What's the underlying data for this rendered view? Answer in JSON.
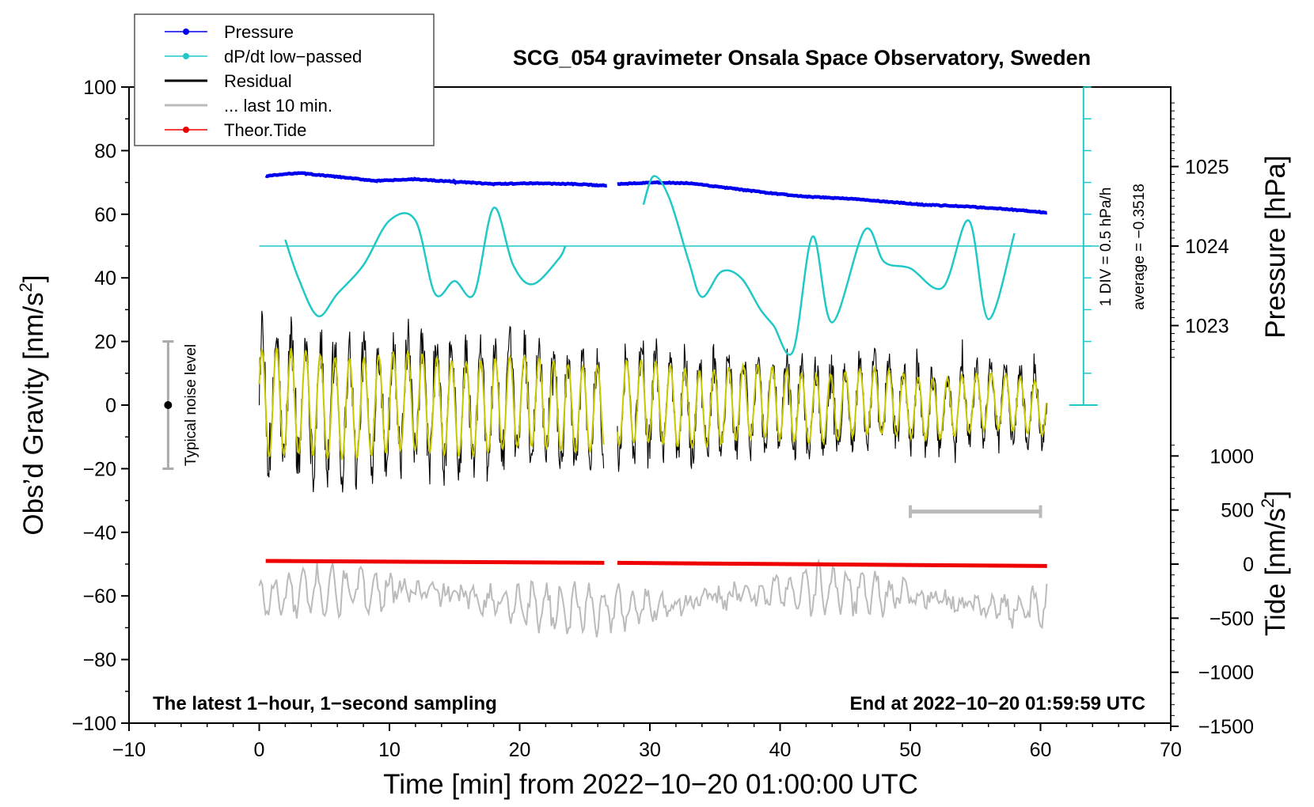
{
  "chart_data": {
    "type": "line",
    "title": "SCG_054 gravimeter Onsala Space Observatory, Sweden",
    "xlabel": "Time [min] from 2022−10−20 01:00:00 UTC",
    "ylabel_left": "Obs’d Gravity [nm/s",
    "ylabel_left_sup": "2",
    "ylabel_left_close": "]",
    "ylabel_right_pressure": "Pressure [hPa]",
    "ylabel_right_tide": "Tide [nm/s",
    "ylabel_right_tide_sup": "2",
    "ylabel_right_tide_close": "]",
    "xlim": [
      -10,
      70
    ],
    "ylim": [
      -100,
      100
    ],
    "x_ticks": [
      -10,
      0,
      10,
      20,
      30,
      40,
      50,
      60,
      70
    ],
    "x_tick_labels": [
      "−10",
      "0",
      "10",
      "20",
      "30",
      "40",
      "50",
      "60",
      "70"
    ],
    "y_ticks": [
      -100,
      -80,
      -60,
      -40,
      -20,
      0,
      20,
      40,
      60,
      80,
      100
    ],
    "y_tick_labels": [
      "−100",
      "−80",
      "−60",
      "−40",
      "−20",
      "0",
      "20",
      "40",
      "60",
      "80",
      "100"
    ],
    "pressure_ticks": [
      1023,
      1024,
      1025
    ],
    "pressure_tick_labels": [
      "1023",
      "1024",
      "1025"
    ],
    "tide_ticks": [
      -1500,
      -1000,
      -500,
      0,
      500,
      1000
    ],
    "tide_tick_labels": [
      "−1500",
      "−1000",
      "−500",
      "0",
      "500",
      "1000"
    ],
    "legend": {
      "position": "top-left",
      "entries": [
        {
          "label": "Pressure",
          "color": "#0000ee",
          "marker": true
        },
        {
          "label": "dP/dt low−passed",
          "color": "#20c8c8",
          "marker": true
        },
        {
          "label": "Residual",
          "color": "#000000",
          "marker": false
        },
        {
          "label": "... last 10 min.",
          "color": "#bbbbbb",
          "marker": false
        },
        {
          "label": "Theor.Tide",
          "color": "#ee0000",
          "marker": true
        }
      ]
    },
    "annotations": {
      "bottom_left": "The latest 1−hour, 1−second sampling",
      "bottom_right": "End at 2022−10−20 01:59:59 UTC",
      "noise_label": "Typical noise level",
      "dpdt_scale": "1 DIV = 0.5 hPa/h",
      "dpdt_average": "average = −0.3518"
    },
    "series": {
      "pressure_hPa": {
        "x": [
          0.5,
          3,
          6,
          9,
          12,
          15,
          18,
          21,
          24,
          26.7,
          27.5,
          30,
          33,
          36,
          39,
          42,
          45,
          48,
          51,
          54,
          57,
          60.5
        ],
        "y": [
          1024.88,
          1024.92,
          1024.87,
          1024.82,
          1024.84,
          1024.81,
          1024.78,
          1024.79,
          1024.78,
          1024.76,
          1024.78,
          1024.8,
          1024.79,
          1024.73,
          1024.67,
          1024.62,
          1024.6,
          1024.56,
          1024.52,
          1024.5,
          1024.47,
          1024.42
        ],
        "gap": [
          26.7,
          27.5
        ]
      },
      "dpdt_lowpassed": {
        "zero_level_gravity": 50,
        "x": [
          2,
          3,
          4.5,
          6,
          8,
          10,
          12,
          13.5,
          15,
          16.5,
          18,
          19.5,
          21,
          23,
          23.5,
          29.5,
          30.3,
          31.5,
          33,
          34,
          35.5,
          37,
          38.5,
          39.5,
          41,
          42.5,
          44,
          46.5,
          48,
          50,
          52.5,
          54.5,
          56,
          58
        ],
        "y": [
          52,
          40,
          28,
          35,
          44,
          58,
          58,
          35,
          39,
          35,
          62,
          44,
          38,
          46,
          50,
          63,
          72,
          65,
          45,
          34,
          42,
          40,
          30,
          25,
          17,
          53,
          26,
          55,
          45,
          43,
          37,
          58,
          27,
          54
        ],
        "gap": [
          23.5,
          29.5
        ]
      },
      "residual_nm_s2": {
        "description": "oscillating ~1-min-period signal, envelope shrinking from about +/-20 to +/-10",
        "x_range": [
          0,
          60.5
        ],
        "gap": [
          26.5,
          27.5
        ]
      },
      "last_10_min_nm_s2": {
        "description": "grey trace around -60 nm/s2, amplitude about +/-10",
        "x_range": [
          0,
          60.5
        ]
      },
      "theor_tide_nm_s2": {
        "x": [
          0.5,
          26.5,
          27.5,
          60.5
        ],
        "y": [
          -49,
          -49.6,
          -49.6,
          -50.6
        ],
        "gap": [
          26.5,
          27.5
        ]
      },
      "noise_bar_gravity": [
        -20,
        20
      ],
      "ten_min_bar_x": [
        50,
        60
      ]
    }
  }
}
